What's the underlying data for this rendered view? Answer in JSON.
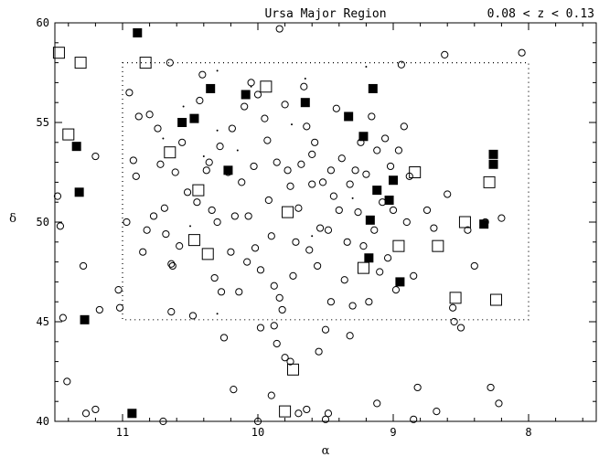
{
  "chart_data": {
    "type": "scatter",
    "title": "Ursa Major Region",
    "subtitle": "0.08 < z < 0.13",
    "xlabel": "α",
    "ylabel": "δ",
    "xlim": [
      11.5,
      7.5
    ],
    "ylim": [
      40,
      60
    ],
    "x_reversed": true,
    "xticks": [
      11,
      10,
      9,
      8
    ],
    "yticks": [
      40,
      45,
      50,
      55,
      60
    ],
    "grid": false,
    "legend": "none",
    "region_box": {
      "ra": [
        11.0,
        8.0
      ],
      "dec": [
        45.1,
        58.0
      ],
      "style": "dotted"
    },
    "series": [
      {
        "marker": "open-circle",
        "points": [
          [
            11.48,
            51.3
          ],
          [
            11.46,
            49.8
          ],
          [
            11.44,
            45.2
          ],
          [
            11.41,
            42.0
          ],
          [
            11.29,
            47.8
          ],
          [
            11.2,
            53.3
          ],
          [
            11.17,
            45.6
          ],
          [
            11.27,
            40.4
          ],
          [
            11.2,
            40.6
          ],
          [
            11.03,
            46.6
          ],
          [
            11.02,
            45.7
          ],
          [
            10.97,
            50.0
          ],
          [
            10.95,
            56.5
          ],
          [
            10.9,
            52.3
          ],
          [
            10.88,
            55.3
          ],
          [
            10.85,
            48.5
          ],
          [
            10.82,
            49.6
          ],
          [
            10.8,
            55.4
          ],
          [
            10.77,
            50.3
          ],
          [
            10.74,
            54.7
          ],
          [
            10.72,
            52.9
          ],
          [
            10.69,
            50.7
          ],
          [
            10.68,
            49.4
          ],
          [
            10.65,
            58.0
          ],
          [
            10.64,
            47.9
          ],
          [
            10.63,
            47.8
          ],
          [
            10.61,
            52.5
          ],
          [
            10.58,
            48.8
          ],
          [
            10.52,
            51.5
          ],
          [
            10.48,
            45.3
          ],
          [
            10.45,
            51.0
          ],
          [
            10.43,
            56.1
          ],
          [
            10.41,
            57.4
          ],
          [
            10.38,
            52.6
          ],
          [
            10.36,
            53.0
          ],
          [
            10.34,
            50.6
          ],
          [
            10.32,
            47.2
          ],
          [
            10.3,
            50.0
          ],
          [
            10.28,
            53.8
          ],
          [
            10.27,
            46.5
          ],
          [
            10.22,
            52.5
          ],
          [
            10.2,
            48.5
          ],
          [
            10.19,
            54.7
          ],
          [
            10.17,
            50.3
          ],
          [
            10.14,
            46.5
          ],
          [
            10.12,
            52.0
          ],
          [
            10.1,
            55.8
          ],
          [
            10.08,
            48.0
          ],
          [
            10.07,
            50.3
          ],
          [
            10.05,
            57.0
          ],
          [
            10.03,
            52.8
          ],
          [
            10.02,
            48.7
          ],
          [
            10.0,
            56.4
          ],
          [
            9.98,
            47.6
          ],
          [
            9.95,
            55.2
          ],
          [
            9.93,
            54.1
          ],
          [
            9.92,
            51.1
          ],
          [
            9.9,
            49.3
          ],
          [
            9.88,
            46.8
          ],
          [
            9.86,
            53.0
          ],
          [
            9.84,
            59.7
          ],
          [
            9.82,
            45.6
          ],
          [
            9.8,
            55.9
          ],
          [
            9.78,
            52.6
          ],
          [
            9.76,
            51.8
          ],
          [
            9.74,
            47.3
          ],
          [
            9.72,
            49.0
          ],
          [
            9.7,
            50.7
          ],
          [
            9.68,
            52.9
          ],
          [
            9.66,
            56.8
          ],
          [
            9.64,
            54.8
          ],
          [
            9.62,
            48.6
          ],
          [
            9.6,
            51.9
          ],
          [
            9.58,
            54.0
          ],
          [
            9.56,
            47.8
          ],
          [
            9.54,
            49.7
          ],
          [
            9.52,
            52.0
          ],
          [
            9.5,
            44.6
          ],
          [
            9.48,
            49.6
          ],
          [
            9.46,
            46.0
          ],
          [
            9.44,
            51.3
          ],
          [
            9.42,
            55.7
          ],
          [
            9.4,
            50.6
          ],
          [
            9.38,
            53.2
          ],
          [
            9.36,
            47.1
          ],
          [
            9.34,
            49.0
          ],
          [
            9.32,
            51.9
          ],
          [
            9.3,
            45.8
          ],
          [
            9.28,
            52.6
          ],
          [
            9.26,
            50.5
          ],
          [
            9.24,
            54.0
          ],
          [
            9.22,
            48.8
          ],
          [
            9.2,
            52.4
          ],
          [
            9.18,
            46.0
          ],
          [
            9.16,
            55.3
          ],
          [
            9.14,
            49.6
          ],
          [
            9.12,
            53.6
          ],
          [
            9.1,
            47.5
          ],
          [
            9.08,
            51.0
          ],
          [
            9.06,
            54.2
          ],
          [
            9.04,
            48.2
          ],
          [
            9.02,
            52.8
          ],
          [
            9.0,
            50.6
          ],
          [
            8.98,
            46.6
          ],
          [
            8.96,
            53.6
          ],
          [
            8.94,
            57.9
          ],
          [
            8.92,
            54.8
          ],
          [
            8.9,
            50.0
          ],
          [
            8.88,
            52.3
          ],
          [
            8.85,
            47.3
          ],
          [
            8.82,
            41.7
          ],
          [
            8.75,
            50.6
          ],
          [
            8.7,
            49.7
          ],
          [
            8.62,
            58.4
          ],
          [
            8.6,
            51.4
          ],
          [
            8.55,
            45.0
          ],
          [
            8.5,
            44.7
          ],
          [
            8.45,
            49.6
          ],
          [
            8.4,
            47.8
          ],
          [
            8.32,
            50.0
          ],
          [
            8.28,
            41.7
          ],
          [
            8.22,
            40.9
          ],
          [
            8.2,
            50.2
          ],
          [
            8.05,
            58.5
          ],
          [
            10.0,
            40.0
          ],
          [
            9.98,
            44.7
          ],
          [
            9.9,
            41.3
          ],
          [
            9.86,
            43.9
          ],
          [
            9.8,
            43.2
          ],
          [
            9.76,
            43.0
          ],
          [
            9.7,
            40.4
          ],
          [
            9.64,
            40.6
          ],
          [
            9.55,
            43.5
          ],
          [
            9.5,
            40.1
          ],
          [
            9.48,
            40.4
          ],
          [
            9.12,
            40.9
          ],
          [
            8.85,
            40.1
          ],
          [
            8.68,
            40.5
          ],
          [
            10.64,
            45.5
          ],
          [
            10.7,
            40.0
          ],
          [
            10.25,
            44.2
          ],
          [
            10.18,
            41.6
          ],
          [
            9.88,
            44.8
          ],
          [
            9.32,
            44.3
          ],
          [
            8.56,
            45.7
          ],
          [
            10.92,
            53.1
          ],
          [
            9.84,
            46.2
          ],
          [
            9.6,
            53.4
          ],
          [
            9.46,
            52.6
          ],
          [
            10.56,
            54.0
          ]
        ]
      },
      {
        "marker": "open-square",
        "points": [
          [
            11.47,
            58.5
          ],
          [
            11.4,
            54.4
          ],
          [
            11.31,
            58.0
          ],
          [
            10.83,
            58.0
          ],
          [
            10.65,
            53.5
          ],
          [
            10.44,
            51.6
          ],
          [
            10.47,
            49.1
          ],
          [
            10.37,
            48.4
          ],
          [
            9.94,
            56.8
          ],
          [
            9.78,
            50.5
          ],
          [
            9.8,
            40.5
          ],
          [
            9.74,
            42.6
          ],
          [
            9.22,
            47.7
          ],
          [
            8.96,
            48.8
          ],
          [
            8.84,
            52.5
          ],
          [
            8.67,
            48.8
          ],
          [
            8.54,
            46.2
          ],
          [
            8.47,
            50.0
          ],
          [
            8.29,
            52.0
          ],
          [
            8.24,
            46.1
          ]
        ]
      },
      {
        "marker": "filled-square",
        "points": [
          [
            11.34,
            53.8
          ],
          [
            11.32,
            51.5
          ],
          [
            11.28,
            45.1
          ],
          [
            10.89,
            59.5
          ],
          [
            10.93,
            40.4
          ],
          [
            10.56,
            55.0
          ],
          [
            10.47,
            55.2
          ],
          [
            10.35,
            56.7
          ],
          [
            10.22,
            52.6
          ],
          [
            10.09,
            56.4
          ],
          [
            9.65,
            56.0
          ],
          [
            9.33,
            55.3
          ],
          [
            9.22,
            54.3
          ],
          [
            9.15,
            56.7
          ],
          [
            9.17,
            50.1
          ],
          [
            9.12,
            51.6
          ],
          [
            9.03,
            51.1
          ],
          [
            9.0,
            52.1
          ],
          [
            9.18,
            48.2
          ],
          [
            8.95,
            47.0
          ],
          [
            8.33,
            49.9
          ],
          [
            8.26,
            53.4
          ],
          [
            8.26,
            52.9
          ]
        ]
      },
      {
        "marker": "dot",
        "points": [
          [
            10.7,
            54.2
          ],
          [
            10.55,
            55.8
          ],
          [
            10.3,
            57.6
          ],
          [
            10.05,
            56.8
          ],
          [
            9.65,
            57.2
          ],
          [
            9.2,
            57.8
          ],
          [
            10.4,
            53.3
          ],
          [
            10.3,
            54.6
          ],
          [
            10.15,
            53.6
          ],
          [
            9.75,
            54.9
          ],
          [
            9.3,
            51.2
          ],
          [
            9.6,
            49.3
          ],
          [
            10.5,
            49.8
          ],
          [
            10.3,
            45.4
          ]
        ]
      }
    ]
  }
}
